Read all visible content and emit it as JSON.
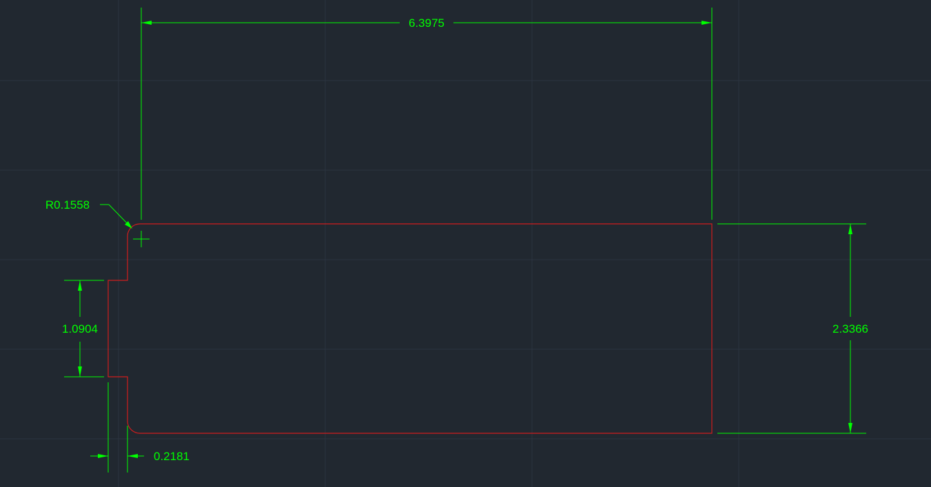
{
  "drawing": {
    "dimensions": {
      "overall_width": "6.3975",
      "overall_height": "2.3366",
      "corner_radius": "R0.1558",
      "tab_height": "1.0904",
      "tab_depth": "0.2181"
    },
    "colors": {
      "background": "#212830",
      "grid": "#2c3440",
      "dimension": "#00ff00",
      "geometry": "#d11d1d"
    }
  }
}
